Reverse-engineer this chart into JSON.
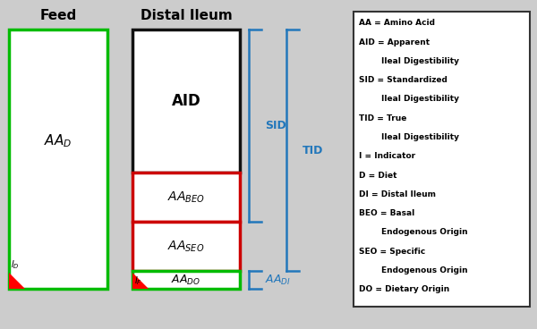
{
  "bg_color": "#cccccc",
  "title_feed": "Feed",
  "title_distal": "Distal Ileum",
  "legend_text": [
    "AA = Amino Acid",
    "AID = Apparent",
    "        Ileal Digestibility",
    "SID = Standardized",
    "        Ileal Digestibility",
    "TID = True",
    "        Ileal Digestibility",
    "I = Indicator",
    "D = Diet",
    "DI = Distal Ileum",
    "BEO = Basal",
    "        Endogenous Origin",
    "SEO = Specific",
    "        Endogenous Origin",
    "DO = Dietary Origin"
  ]
}
